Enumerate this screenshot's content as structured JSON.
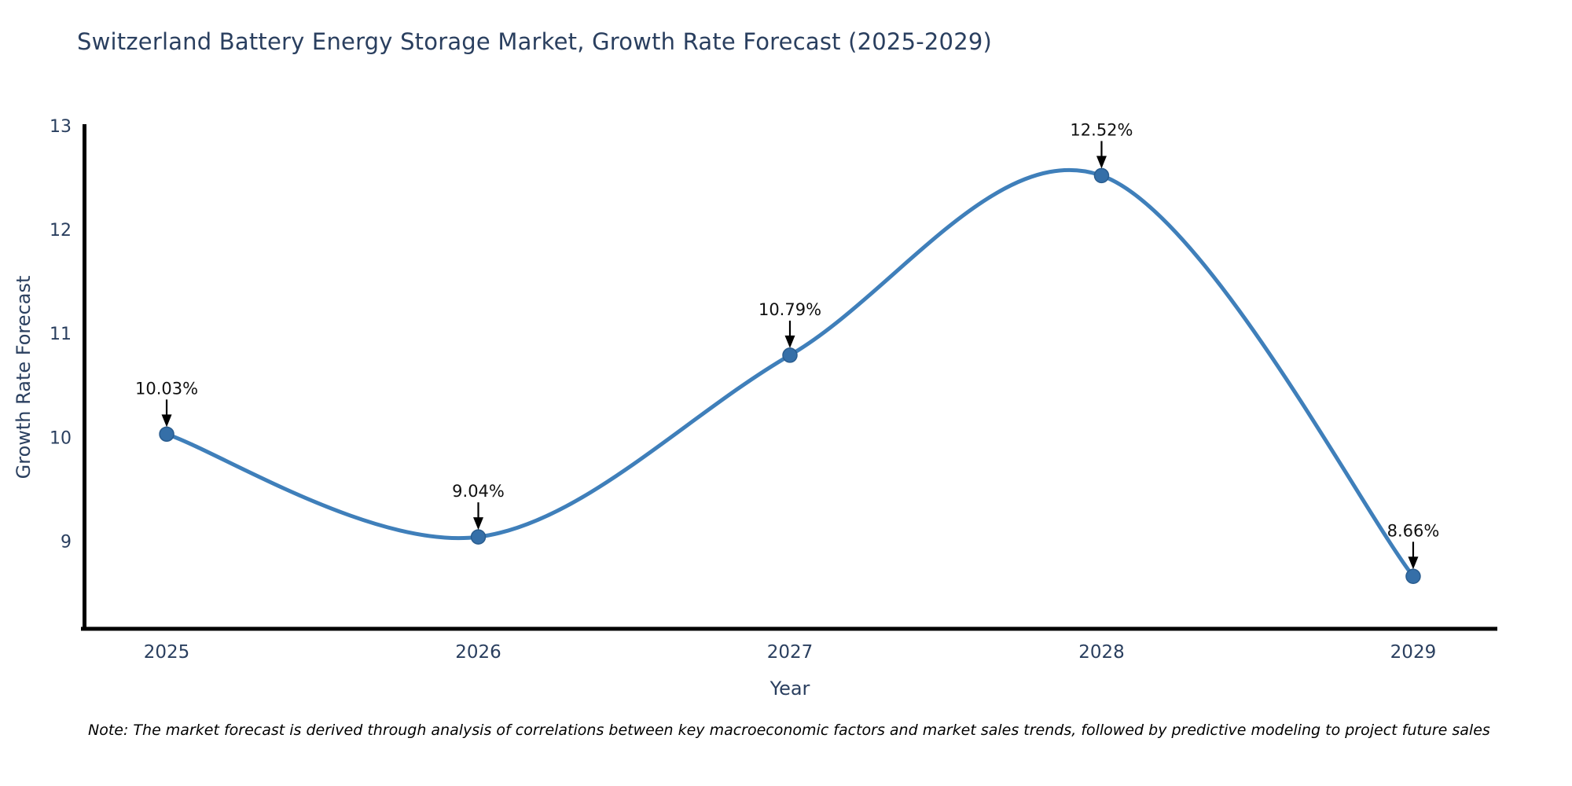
{
  "title": "Switzerland Battery Energy Storage Market, Growth Rate Forecast (2025-2029)",
  "note": "Note: The market forecast is derived through analysis of correlations between key macroeconomic factors and market sales trends, followed by predictive modeling to project future sales",
  "chart_data": {
    "type": "line",
    "x": [
      2025,
      2026,
      2027,
      2028,
      2029
    ],
    "values": [
      10.03,
      9.04,
      10.79,
      12.52,
      8.66
    ],
    "point_labels": [
      "10.03%",
      "9.04%",
      "10.79%",
      "12.52%",
      "8.66%"
    ],
    "x_tick_labels": [
      "2025",
      "2026",
      "2027",
      "2028",
      "2029"
    ],
    "y_ticks": [
      9,
      10,
      11,
      12,
      13
    ],
    "xlabel": "Year",
    "ylabel": "Growth Rate Forecast",
    "xlim": [
      2024.73,
      2029.27
    ],
    "ylim": [
      8.155,
      13.0
    ],
    "grid": false,
    "legend": "none",
    "smooth": true,
    "colors": {
      "line": "#3f7fba",
      "marker_fill": "#356fa8",
      "marker_edge": "#2a5d8f",
      "axis": "#000000",
      "title": "#2a3f5f",
      "tick": "#2a3f5f",
      "annotation": "#111111",
      "arrow": "#000000",
      "background": "#ffffff"
    }
  }
}
